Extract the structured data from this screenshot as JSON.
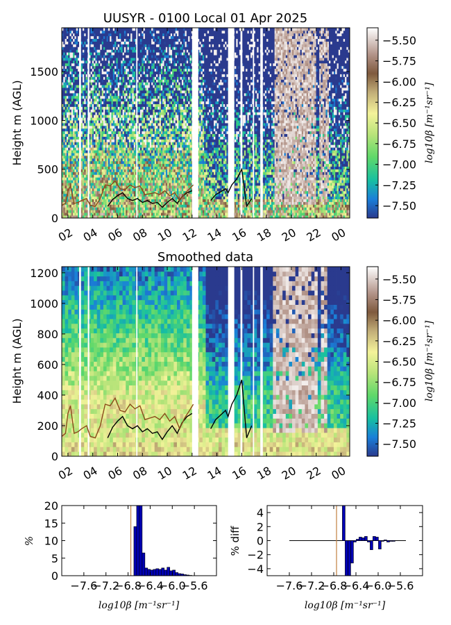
{
  "chart_data": [
    {
      "type": "heatmap",
      "title": "UUSYR - 0100 Local 01 Apr 2025",
      "ylabel": "Height m (AGL)",
      "ylim": [
        0,
        1950
      ],
      "yticks": [
        0,
        500,
        1000,
        1500
      ],
      "xticks": [
        "02",
        "04",
        "06",
        "08",
        "10",
        "12",
        "14",
        "16",
        "18",
        "20",
        "22",
        "00"
      ],
      "xlim_hours": [
        1.5,
        24.7
      ],
      "colorbar": {
        "label": "log10β [m⁻¹sr⁻¹]",
        "ticks": [
          "-5.50",
          "-5.75",
          "-6.00",
          "-6.25",
          "-6.50",
          "-6.75",
          "-7.00",
          "-7.25",
          "-7.50"
        ],
        "range": [
          -7.65,
          -5.35
        ]
      },
      "series": [
        {
          "color": "#000000",
          "x": [
            5.2,
            5.6,
            6.0,
            6.4,
            6.8,
            7.2,
            7.6,
            8.0,
            8.4,
            8.8,
            9.2,
            9.6,
            10.0,
            10.4,
            10.8,
            11.2,
            11.6,
            12.0
          ],
          "y": [
            120,
            190,
            230,
            260,
            200,
            180,
            200,
            160,
            180,
            150,
            160,
            110,
            160,
            200,
            150,
            220,
            260,
            280
          ]
        },
        {
          "color": "#8b4a1a",
          "x": [
            1.5,
            1.8,
            2.0,
            2.2,
            2.5,
            2.8,
            3.1,
            3.5,
            3.8,
            4.2,
            4.6,
            5.0,
            5.4,
            5.8,
            6.2,
            6.6,
            7.0,
            7.4,
            7.8,
            8.2,
            8.6,
            9.0,
            9.4,
            9.8,
            10.2,
            10.6,
            11.0,
            11.4,
            11.8,
            12.1
          ],
          "y": [
            130,
            150,
            280,
            330,
            150,
            160,
            180,
            200,
            130,
            120,
            200,
            340,
            330,
            380,
            300,
            290,
            340,
            310,
            330,
            240,
            250,
            260,
            240,
            280,
            230,
            260,
            180,
            250,
            300,
            340
          ]
        },
        {
          "color": "#000000",
          "x": [
            13.5,
            13.9,
            14.3,
            14.7,
            14.9,
            15.2,
            15.6,
            16.0,
            16.4,
            16.8
          ],
          "y": [
            180,
            240,
            270,
            300,
            260,
            340,
            400,
            500,
            120,
            200
          ]
        }
      ]
    },
    {
      "type": "heatmap",
      "title": "Smoothed data",
      "ylabel": "Height m (AGL)",
      "ylim": [
        0,
        1240
      ],
      "yticks": [
        0,
        200,
        400,
        600,
        800,
        1000,
        1200
      ],
      "xticks": [
        "02",
        "04",
        "06",
        "08",
        "10",
        "12",
        "14",
        "16",
        "18",
        "20",
        "22",
        "00"
      ],
      "xlim_hours": [
        1.5,
        24.7
      ],
      "colorbar": {
        "label": "log10β [m⁻¹sr⁻¹]",
        "ticks": [
          "-5.50",
          "-5.75",
          "-6.00",
          "-6.25",
          "-6.50",
          "-6.75",
          "-7.00",
          "-7.25",
          "-7.50"
        ],
        "range": [
          -7.65,
          -5.35
        ]
      },
      "series": [
        {
          "color": "#000000",
          "x": [
            5.2,
            5.6,
            6.0,
            6.4,
            6.8,
            7.2,
            7.6,
            8.0,
            8.4,
            8.8,
            9.2,
            9.6,
            10.0,
            10.4,
            10.8,
            11.2,
            11.6,
            12.0
          ],
          "y": [
            120,
            190,
            230,
            260,
            200,
            180,
            200,
            160,
            180,
            150,
            160,
            110,
            160,
            200,
            150,
            220,
            260,
            280
          ]
        },
        {
          "color": "#8b4a1a",
          "x": [
            1.5,
            1.8,
            2.0,
            2.2,
            2.5,
            2.8,
            3.1,
            3.5,
            3.8,
            4.2,
            4.6,
            5.0,
            5.4,
            5.8,
            6.2,
            6.6,
            7.0,
            7.4,
            7.8,
            8.2,
            8.6,
            9.0,
            9.4,
            9.8,
            10.2,
            10.6,
            11.0,
            11.4,
            11.8,
            12.1
          ],
          "y": [
            130,
            150,
            280,
            330,
            150,
            160,
            180,
            200,
            130,
            120,
            200,
            340,
            330,
            380,
            300,
            290,
            340,
            310,
            330,
            240,
            250,
            260,
            240,
            280,
            230,
            260,
            180,
            250,
            300,
            340
          ]
        },
        {
          "color": "#000000",
          "x": [
            13.5,
            13.9,
            14.3,
            14.7,
            14.9,
            15.2,
            15.6,
            16.0,
            16.4,
            16.8
          ],
          "y": [
            180,
            240,
            270,
            300,
            260,
            340,
            400,
            500,
            120,
            200
          ]
        }
      ]
    },
    {
      "type": "bar",
      "ylabel": "%",
      "xlabel": "log10β [m⁻¹sr⁻¹]",
      "xlim": [
        -8.0,
        -5.2
      ],
      "ylim": [
        0,
        20
      ],
      "xticks": [
        "-7.6",
        "-7.2",
        "-6.8",
        "-6.4",
        "-6.0",
        "-5.6"
      ],
      "yticks": [
        "0",
        "5",
        "10",
        "15",
        "20"
      ],
      "bar_color": "#0000b4",
      "x": [
        -6.67,
        -6.62,
        -6.57,
        -6.52,
        -6.47,
        -6.42,
        -6.37,
        -6.32,
        -6.27,
        -6.22,
        -6.17,
        -6.12,
        -6.07,
        -6.02,
        -5.97,
        -5.92,
        -5.87,
        -5.82,
        -5.77,
        -5.72,
        -5.67
      ],
      "values": [
        14,
        20,
        20,
        6.5,
        2.2,
        1.8,
        1.6,
        1.8,
        2.0,
        1.8,
        2.2,
        1.6,
        2.4,
        1.4,
        1.6,
        0.9,
        0.6,
        0.5,
        0.3,
        0.2,
        0.1
      ]
    },
    {
      "type": "bar",
      "ylabel": "% diff",
      "xlabel": "log10β [m⁻¹sr⁻¹]",
      "xlim": [
        -8.0,
        -5.2
      ],
      "ylim": [
        -5,
        5
      ],
      "xticks": [
        "-7.6",
        "-7.2",
        "-6.8",
        "-6.4",
        "-6.0",
        "-5.6"
      ],
      "yticks": [
        "4",
        "2",
        "0",
        "-2",
        "-4"
      ],
      "bar_color": "#0000b4",
      "x": [
        -6.62,
        -6.57,
        -6.52,
        -6.47,
        -6.42,
        -6.37,
        -6.32,
        -6.27,
        -6.22,
        -6.17,
        -6.12,
        -6.07,
        -6.02,
        -5.97,
        -5.92,
        -5.87,
        -5.82,
        -5.77,
        -5.72
      ],
      "values": [
        5,
        -5,
        -5,
        -3.2,
        -0.2,
        0.2,
        0.5,
        0.4,
        0.6,
        -0.2,
        -1.3,
        0.6,
        0.5,
        -1.2,
        -0.1,
        0.1,
        -0.2,
        -0.1,
        -0.1
      ]
    }
  ]
}
